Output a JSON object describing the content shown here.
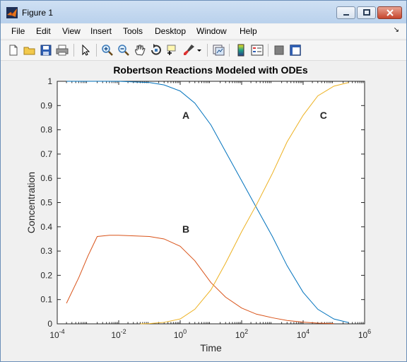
{
  "window": {
    "title": "Figure 1"
  },
  "menu": [
    "File",
    "Edit",
    "View",
    "Insert",
    "Tools",
    "Desktop",
    "Window",
    "Help"
  ],
  "menu_arrow": "↘",
  "toolbar_icons": [
    "new-figure-icon",
    "open-folder-icon",
    "save-icon",
    "print-icon",
    "pointer-icon",
    "zoom-in-icon",
    "zoom-out-icon",
    "pan-hand-icon",
    "rotate-3d-icon",
    "data-cursor-icon",
    "brush-icon",
    "brush-dropdown-icon",
    "link-plot-icon",
    "colorbar-icon",
    "legend-icon",
    "hide-plot-tools-icon",
    "show-plot-tools-icon"
  ],
  "chart_data": {
    "type": "line",
    "title": "Robertson Reactions Modeled with ODEs",
    "xlabel": "Time",
    "ylabel": "Concentration",
    "xscale": "log",
    "xlim": [
      0.0001,
      1000000
    ],
    "ylim": [
      0,
      1
    ],
    "grid": false,
    "x_tick_labels": [
      {
        "base": "10",
        "exp": "-4"
      },
      {
        "base": "10",
        "exp": "-2"
      },
      {
        "base": "10",
        "exp": "0"
      },
      {
        "base": "10",
        "exp": "2"
      },
      {
        "base": "10",
        "exp": "4"
      },
      {
        "base": "10",
        "exp": "6"
      }
    ],
    "y_ticks": [
      "0",
      "0.1",
      "0.2",
      "0.3",
      "0.4",
      "0.5",
      "0.6",
      "0.7",
      "0.8",
      "0.9",
      "1"
    ],
    "annotations": [
      {
        "text": "A",
        "x": 1.0,
        "y": 0.86
      },
      {
        "text": "B",
        "x": 1.0,
        "y": 0.39
      },
      {
        "text": "C",
        "x": 30000,
        "y": 0.86
      }
    ],
    "series": [
      {
        "color": "#0072bd",
        "x": [
          0.0002,
          0.001,
          0.01,
          0.1,
          0.3,
          1,
          3,
          10,
          30,
          100,
          300,
          1000,
          3000,
          10000,
          30000,
          100000,
          300000
        ],
        "y": [
          1.0,
          1.0,
          1.0,
          0.995,
          0.985,
          0.96,
          0.91,
          0.82,
          0.71,
          0.59,
          0.48,
          0.36,
          0.24,
          0.13,
          0.06,
          0.02,
          0.005
        ]
      },
      {
        "color": "#d95319",
        "x": [
          0.0002,
          0.0005,
          0.001,
          0.002,
          0.005,
          0.01,
          0.1,
          0.3,
          1,
          3,
          10,
          30,
          100,
          300,
          1000,
          3000,
          10000,
          30000,
          100000
        ],
        "y": [
          0.085,
          0.19,
          0.28,
          0.36,
          0.365,
          0.365,
          0.36,
          0.35,
          0.32,
          0.26,
          0.17,
          0.11,
          0.065,
          0.04,
          0.025,
          0.014,
          0.007,
          0.003,
          0.001
        ]
      },
      {
        "color": "#edb120",
        "x": [
          0.05,
          0.1,
          0.3,
          1,
          3,
          10,
          30,
          100,
          300,
          1000,
          3000,
          10000,
          30000,
          100000,
          300000
        ],
        "y": [
          0,
          0.001,
          0.006,
          0.02,
          0.06,
          0.14,
          0.25,
          0.38,
          0.49,
          0.62,
          0.75,
          0.86,
          0.94,
          0.98,
          0.995
        ]
      }
    ]
  }
}
